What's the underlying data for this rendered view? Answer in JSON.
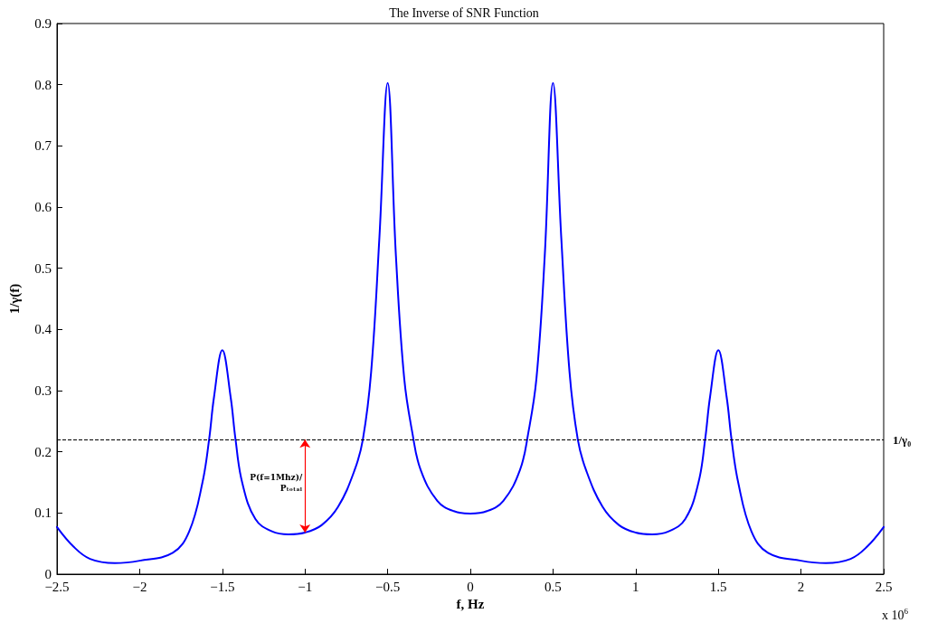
{
  "chart_data": {
    "type": "line",
    "title": "The Inverse of SNR Function",
    "xlabel": "f, Hz",
    "ylabel": "1/γ(f)",
    "x": [
      -2.5,
      -2.4,
      -2.3,
      -2.15,
      -2.0,
      -1.8,
      -1.7,
      -1.62,
      -1.58,
      -1.55,
      -1.5,
      -1.45,
      -1.42,
      -1.38,
      -1.3,
      -1.2,
      -1.1,
      -1.0,
      -0.9,
      -0.8,
      -0.7,
      -0.65,
      -0.6,
      -0.55,
      -0.5,
      -0.45,
      -0.4,
      -0.35,
      -0.3,
      -0.2,
      -0.1,
      0,
      0.1,
      0.2,
      0.3,
      0.35,
      0.4,
      0.45,
      0.5,
      0.55,
      0.6,
      0.65,
      0.7,
      0.8,
      0.9,
      1.0,
      1.1,
      1.2,
      1.3,
      1.38,
      1.42,
      1.45,
      1.5,
      1.55,
      1.58,
      1.62,
      1.7,
      1.8,
      2.0,
      2.15,
      2.3,
      2.4,
      2.5
    ],
    "series": [
      {
        "color": "#0000ff",
        "values": [
          0.077,
          0.045,
          0.025,
          0.018,
          0.022,
          0.035,
          0.07,
          0.15,
          0.22,
          0.29,
          0.366,
          0.29,
          0.22,
          0.15,
          0.09,
          0.07,
          0.065,
          0.068,
          0.08,
          0.11,
          0.17,
          0.22,
          0.33,
          0.55,
          0.803,
          0.52,
          0.32,
          0.23,
          0.17,
          0.12,
          0.103,
          0.099,
          0.103,
          0.12,
          0.17,
          0.23,
          0.32,
          0.52,
          0.803,
          0.55,
          0.33,
          0.22,
          0.17,
          0.11,
          0.08,
          0.068,
          0.065,
          0.07,
          0.09,
          0.15,
          0.22,
          0.29,
          0.366,
          0.29,
          0.22,
          0.15,
          0.07,
          0.035,
          0.022,
          0.018,
          0.025,
          0.045,
          0.077
        ]
      }
    ],
    "xlim": [
      -2.5,
      2.5
    ],
    "xticks": [
      -2.5,
      -2,
      -1.5,
      -1,
      -0.5,
      0,
      0.5,
      1,
      1.5,
      2,
      2.5
    ],
    "ylim": [
      0,
      0.9
    ],
    "yticks": [
      0,
      0.1,
      0.2,
      0.3,
      0.4,
      0.5,
      0.6,
      0.7,
      0.8,
      0.9
    ],
    "ref_lines": [
      {
        "axis": "y",
        "value": 0.22,
        "label": "1/γ₀",
        "color": "#000000",
        "line_style": "dashed"
      }
    ],
    "annotations": [
      "P(f=1Mhz)/Pₜₒₜₐₗ",
      "x 10$^{6}$"
    ],
    "grid": false,
    "marker": "none",
    "line_style": "solid"
  }
}
